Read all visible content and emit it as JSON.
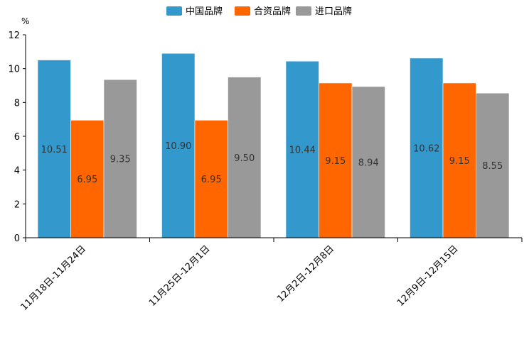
{
  "chart_data": {
    "type": "bar",
    "unit": "%",
    "categories": [
      "11月18日-11月24日",
      "11月25日-12月1日",
      "12月2日-12月8日",
      "12月9日-12月15日"
    ],
    "series": [
      {
        "name": "中国品牌",
        "color": "#3399CC",
        "values": [
          10.51,
          10.9,
          10.44,
          10.62
        ],
        "labels": [
          "10.51",
          "10.90",
          "10.44",
          "10.62"
        ]
      },
      {
        "name": "合资品牌",
        "color": "#FF6600",
        "values": [
          6.95,
          6.95,
          9.15,
          9.15
        ],
        "labels": [
          "6.95",
          "6.95",
          "9.15",
          "9.15"
        ]
      },
      {
        "name": "进口品牌",
        "color": "#999999",
        "values": [
          9.35,
          9.5,
          8.94,
          8.55
        ],
        "labels": [
          "9.35",
          "9.50",
          "8.94",
          "8.55"
        ]
      }
    ],
    "ylim": [
      0,
      12
    ],
    "yticks": [
      0,
      2,
      4,
      6,
      8,
      10,
      12
    ],
    "ytick_labels": [
      "0",
      "2",
      "4",
      "6",
      "8",
      "10",
      "12"
    ],
    "legend_position": "top-center",
    "grid": false
  }
}
